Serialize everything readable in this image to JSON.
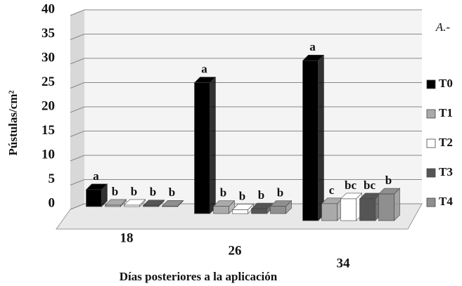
{
  "chart_data": {
    "type": "bar",
    "annotation": "A.-",
    "x_label": "Días posteriores a la aplicación",
    "y_label": "Pústulas/cm²",
    "categories": [
      "18",
      "26",
      "34"
    ],
    "series": [
      {
        "name": "T0",
        "color": "#000000",
        "values": [
          3.5,
          27,
          33
        ],
        "labels": [
          "a",
          "a",
          "a"
        ]
      },
      {
        "name": "T1",
        "color": "#aaaaaa",
        "values": [
          0.3,
          1.5,
          3.5
        ],
        "labels": [
          "b",
          "b",
          "c"
        ]
      },
      {
        "name": "T2",
        "color": "#ffffff",
        "values": [
          0.3,
          0.8,
          4.5
        ],
        "labels": [
          "b",
          "b",
          "bc"
        ]
      },
      {
        "name": "T3",
        "color": "#555555",
        "values": [
          0.2,
          1.0,
          4.5
        ],
        "labels": [
          "b",
          "b",
          "bc"
        ]
      },
      {
        "name": "T4",
        "color": "#8f8f8f",
        "values": [
          0.1,
          1.5,
          5.5
        ],
        "labels": [
          "b",
          "b",
          "b"
        ]
      }
    ],
    "ylim": [
      0,
      40
    ],
    "yticks": [
      0,
      5,
      10,
      15,
      20,
      25,
      30,
      35,
      40
    ],
    "grid": true,
    "legend": "right"
  }
}
